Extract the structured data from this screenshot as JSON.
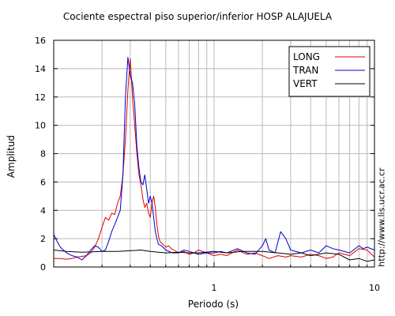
{
  "chart_data": {
    "type": "line",
    "title": "Cociente espectral piso superior/inferior  HOSP ALAJUELA",
    "xlabel": "Periodo (s)",
    "ylabel": "Amplitud",
    "xscale": "log",
    "xlim": [
      0.1,
      10
    ],
    "ylim": [
      0,
      16
    ],
    "x_ticks": [
      1,
      10
    ],
    "x_tick_labels": [
      "1",
      "10"
    ],
    "y_ticks": [
      0,
      2,
      4,
      6,
      8,
      10,
      12,
      14,
      16
    ],
    "y_tick_labels": [
      "0",
      "2",
      "4",
      "6",
      "8",
      "10",
      "12",
      "14",
      "16"
    ],
    "grid": true,
    "legend_position": "top-right",
    "series": [
      {
        "name": "LONG",
        "color": "#e00000",
        "x": [
          0.1,
          0.11,
          0.12,
          0.13,
          0.14,
          0.15,
          0.16,
          0.17,
          0.18,
          0.19,
          0.2,
          0.21,
          0.22,
          0.23,
          0.24,
          0.25,
          0.26,
          0.27,
          0.28,
          0.29,
          0.3,
          0.31,
          0.32,
          0.33,
          0.34,
          0.35,
          0.36,
          0.37,
          0.38,
          0.39,
          0.4,
          0.41,
          0.42,
          0.43,
          0.44,
          0.45,
          0.46,
          0.48,
          0.5,
          0.52,
          0.54,
          0.56,
          0.6,
          0.65,
          0.7,
          0.75,
          0.8,
          0.9,
          1.0,
          1.1,
          1.2,
          1.4,
          1.6,
          1.8,
          2.0,
          2.2,
          2.5,
          2.8,
          3.0,
          3.5,
          4.0,
          4.5,
          5.0,
          5.5,
          6.0,
          7.0,
          8.0,
          9.0,
          10.0
        ],
        "y": [
          0.6,
          0.6,
          0.55,
          0.6,
          0.7,
          0.75,
          0.8,
          1.0,
          1.4,
          2.0,
          2.8,
          3.5,
          3.3,
          3.8,
          3.7,
          4.5,
          5.0,
          6.5,
          9.0,
          12.5,
          14.7,
          12.0,
          10.0,
          8.0,
          6.5,
          5.8,
          4.8,
          4.2,
          4.5,
          3.8,
          3.5,
          4.5,
          5.0,
          4.2,
          3.0,
          2.2,
          1.8,
          1.6,
          1.4,
          1.5,
          1.3,
          1.2,
          1.0,
          1.1,
          0.9,
          1.0,
          1.2,
          1.0,
          0.8,
          0.9,
          0.8,
          1.2,
          0.9,
          1.0,
          0.8,
          0.6,
          0.8,
          0.7,
          0.8,
          0.7,
          0.9,
          0.8,
          0.6,
          0.7,
          1.0,
          0.8,
          1.3,
          1.2,
          0.7
        ]
      },
      {
        "name": "TRAN",
        "color": "#0000d0",
        "x": [
          0.1,
          0.105,
          0.11,
          0.12,
          0.13,
          0.14,
          0.15,
          0.16,
          0.17,
          0.18,
          0.19,
          0.2,
          0.21,
          0.22,
          0.23,
          0.24,
          0.25,
          0.26,
          0.27,
          0.28,
          0.29,
          0.3,
          0.31,
          0.32,
          0.33,
          0.34,
          0.35,
          0.36,
          0.37,
          0.38,
          0.39,
          0.4,
          0.41,
          0.42,
          0.43,
          0.44,
          0.45,
          0.47,
          0.5,
          0.55,
          0.6,
          0.65,
          0.7,
          0.8,
          0.9,
          1.0,
          1.1,
          1.2,
          1.4,
          1.6,
          1.8,
          2.0,
          2.1,
          2.2,
          2.4,
          2.6,
          2.8,
          3.0,
          3.5,
          4.0,
          4.5,
          5.0,
          5.5,
          6.0,
          7.0,
          8.0,
          8.5,
          9.0,
          10.0
        ],
        "y": [
          2.3,
          1.8,
          1.4,
          1.0,
          0.8,
          0.7,
          0.5,
          0.8,
          1.2,
          1.5,
          1.4,
          1.1,
          1.2,
          1.8,
          2.5,
          3.0,
          3.5,
          4.0,
          6.5,
          12.0,
          14.8,
          13.5,
          13.0,
          11.5,
          8.5,
          7.0,
          6.0,
          5.8,
          6.5,
          5.5,
          4.5,
          5.0,
          4.5,
          3.5,
          2.5,
          2.0,
          1.6,
          1.5,
          1.2,
          1.0,
          1.0,
          1.2,
          1.1,
          0.9,
          1.0,
          1.0,
          1.1,
          1.0,
          1.3,
          1.0,
          0.9,
          1.5,
          2.0,
          1.2,
          1.0,
          2.5,
          2.0,
          1.2,
          1.0,
          1.2,
          1.0,
          1.5,
          1.3,
          1.2,
          1.0,
          1.5,
          1.3,
          1.4,
          1.2
        ]
      },
      {
        "name": "VERT",
        "color": "#000000",
        "x": [
          0.1,
          0.12,
          0.15,
          0.2,
          0.25,
          0.3,
          0.35,
          0.4,
          0.5,
          0.6,
          0.7,
          0.8,
          1.0,
          1.2,
          1.5,
          2.0,
          2.5,
          3.0,
          3.5,
          4.0,
          5.0,
          6.0,
          7.0,
          8.0,
          9.0,
          10.0
        ],
        "y": [
          1.2,
          1.1,
          1.05,
          1.1,
          1.1,
          1.15,
          1.2,
          1.1,
          1.0,
          1.05,
          1.0,
          1.0,
          1.1,
          1.0,
          1.1,
          1.1,
          1.0,
          0.9,
          1.0,
          0.8,
          1.0,
          0.9,
          0.5,
          0.6,
          0.4,
          0.5
        ]
      }
    ],
    "source_text": "http://www.lis.ucr.ac.cr"
  }
}
